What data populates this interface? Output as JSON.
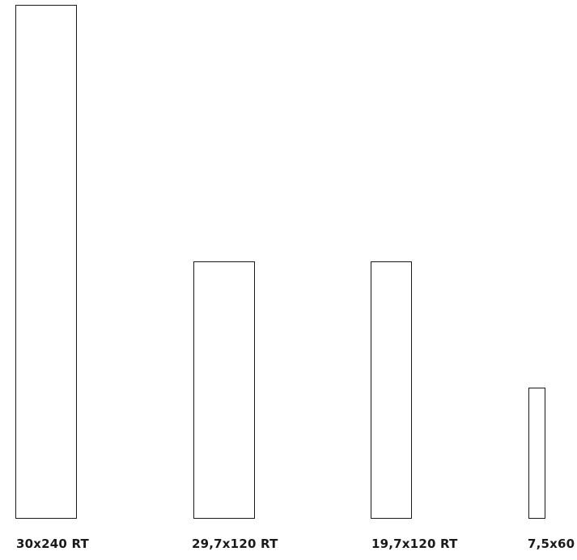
{
  "tiles": [
    {
      "label": "30x240 RT"
    },
    {
      "label": "29,7x120 RT"
    },
    {
      "label": "19,7x120 RT"
    },
    {
      "label": "7,5x60"
    }
  ],
  "colors": {
    "outline": "#1a1a1a",
    "background": "#ffffff",
    "text": "#1a1a1a"
  }
}
